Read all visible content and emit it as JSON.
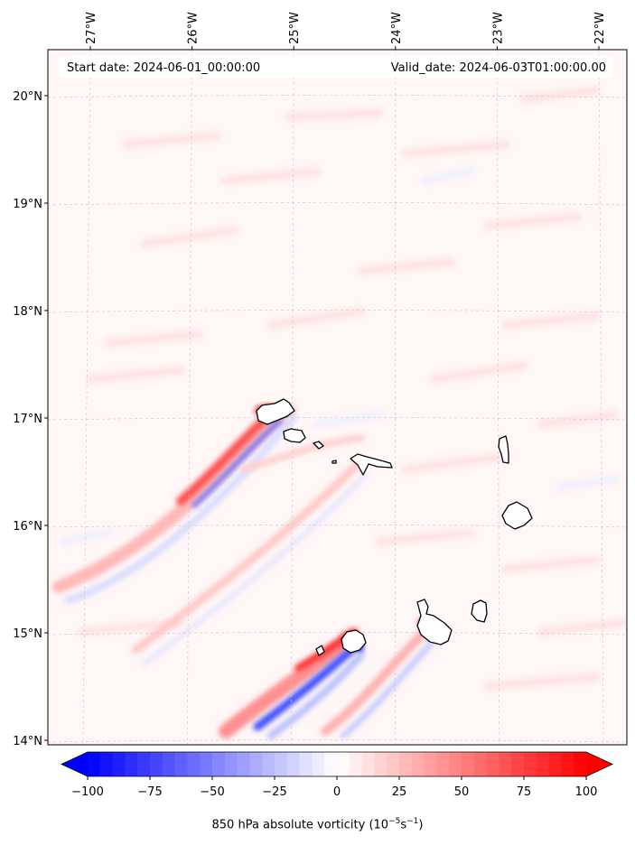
{
  "map": {
    "lon_ticks": [
      {
        "lon": -27,
        "label": "27°W"
      },
      {
        "lon": -26,
        "label": "26°W"
      },
      {
        "lon": -25,
        "label": "25°W"
      },
      {
        "lon": -24,
        "label": "24°W"
      },
      {
        "lon": -23,
        "label": "23°W"
      },
      {
        "lon": -22,
        "label": "22°W"
      }
    ],
    "lat_ticks": [
      {
        "lat": 20,
        "label": "20°N"
      },
      {
        "lat": 19,
        "label": "19°N"
      },
      {
        "lat": 18,
        "label": "18°N"
      },
      {
        "lat": 17,
        "label": "17°N"
      },
      {
        "lat": 16,
        "label": "16°N"
      },
      {
        "lat": 15,
        "label": "15°N"
      },
      {
        "lat": 14,
        "label": "14°N"
      }
    ],
    "header": {
      "start": "Start date: 2024-06-01_00:00:00",
      "valid": "Valid_date: 2024-06-03T01:00:00.00"
    },
    "colors": {
      "low": "#0000ff",
      "mid": "#ffffff",
      "high": "#ff0000",
      "coast": "#000000",
      "grid": "#b0b0b0"
    }
  },
  "colorbar": {
    "min": -100,
    "max": 100,
    "ticks": [
      {
        "value": -100,
        "label": "−100"
      },
      {
        "value": -75,
        "label": "−75"
      },
      {
        "value": -50,
        "label": "−50"
      },
      {
        "value": -25,
        "label": "−25"
      },
      {
        "value": 0,
        "label": "0"
      },
      {
        "value": 25,
        "label": "25"
      },
      {
        "value": 50,
        "label": "50"
      },
      {
        "value": 75,
        "label": "75"
      },
      {
        "value": 100,
        "label": "100"
      }
    ],
    "title_main": "850 hPa absolute vorticity (10",
    "title_exp1": "−5",
    "title_mid": "s",
    "title_exp2": "−1",
    "title_end": ")"
  }
}
